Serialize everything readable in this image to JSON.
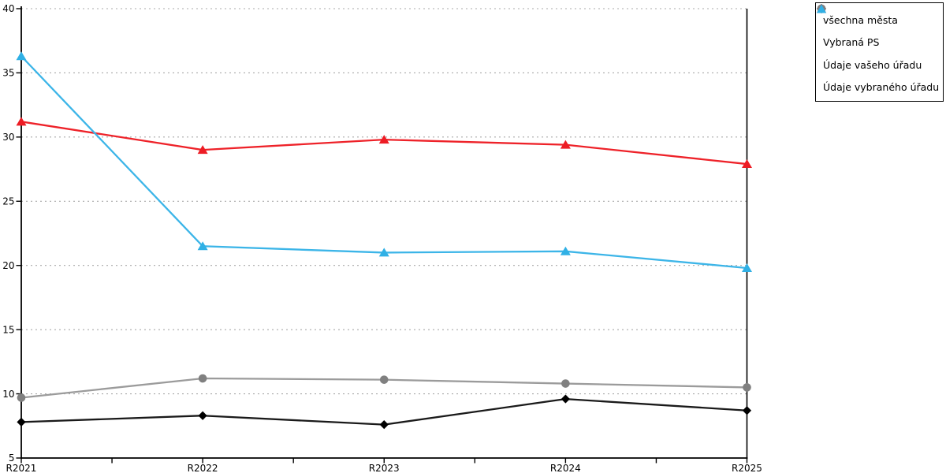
{
  "chart_data": {
    "type": "line",
    "title": "",
    "x_categories": [
      "R2021",
      "R2022",
      "R2023",
      "R2024",
      "R2025"
    ],
    "ylim": [
      5,
      40
    ],
    "yticks": [
      5,
      10,
      15,
      20,
      25,
      30,
      35,
      40
    ],
    "grid": "horizontal-dashed",
    "gridline_color": "#a8a8a8",
    "axis_color": "#000000",
    "legend_position": "outside-top-right",
    "series": [
      {
        "name": "všechna města",
        "marker": "diamond",
        "color": "#000000",
        "line_color": "#1a1a1a",
        "values": [
          7.8,
          8.3,
          7.6,
          9.6,
          8.7
        ]
      },
      {
        "name": "Vybraná PS",
        "marker": "circle",
        "color": "#808080",
        "line_color": "#9b9b9b",
        "values": [
          9.7,
          11.2,
          11.1,
          10.8,
          10.5
        ]
      },
      {
        "name": "Údaje vašeho úřadu",
        "marker": "triangle",
        "color": "#ed1c24",
        "line_color": "#ee2229",
        "values": [
          31.2,
          29.0,
          29.8,
          29.4,
          27.9
        ]
      },
      {
        "name": "Údaje vybraného úřadu",
        "marker": "triangle",
        "color": "#30b0e5",
        "line_color": "#3cb5e8",
        "values": [
          36.3,
          21.5,
          21.0,
          21.1,
          19.8
        ]
      }
    ]
  }
}
